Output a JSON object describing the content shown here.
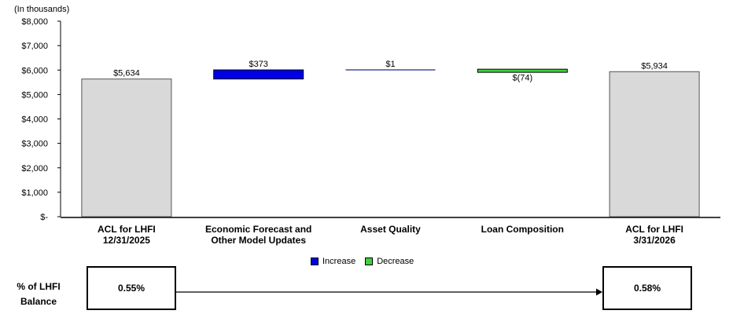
{
  "unit_label": "(In thousands)",
  "legend": {
    "increase": {
      "label": "Increase",
      "color": "#0000e6"
    },
    "decrease": {
      "label": "Decrease",
      "color": "#3fcf3f"
    }
  },
  "colors": {
    "total": "#d9d9d9",
    "thin_line": "#1f2a8a"
  },
  "chart_data": {
    "type": "bar",
    "subtype": "waterfall",
    "categories": [
      [
        "ACL  for LHFI",
        "12/31/2025"
      ],
      [
        "Economic Forecast and",
        "Other Model Updates"
      ],
      [
        "Asset Quality"
      ],
      [
        "Loan Composition"
      ],
      [
        "ACL  for LHFI",
        "3/31/2026"
      ]
    ],
    "steps": [
      {
        "kind": "total",
        "value": 5634,
        "label": "$5,634"
      },
      {
        "kind": "increase",
        "value": 373,
        "label": "$373"
      },
      {
        "kind": "increase",
        "value": 1,
        "label": "$1"
      },
      {
        "kind": "decrease",
        "value": -74,
        "label": "$(74)"
      },
      {
        "kind": "total",
        "value": 5934,
        "label": "$5,934"
      }
    ],
    "ylim": [
      0,
      8000
    ],
    "yticks": [
      0,
      1000,
      2000,
      3000,
      4000,
      5000,
      6000,
      7000,
      8000
    ],
    "ytick_labels": [
      "$-",
      "$1,000",
      "$2,000",
      "$3,000",
      "$4,000",
      "$5,000",
      "$6,000",
      "$7,000",
      "$8,000"
    ],
    "grid": false,
    "legend_position": "bottom-center"
  },
  "lhfi": {
    "label_line1": "% of LHFI",
    "label_line2": "Balance",
    "start": "0.55%",
    "end": "0.58%"
  }
}
